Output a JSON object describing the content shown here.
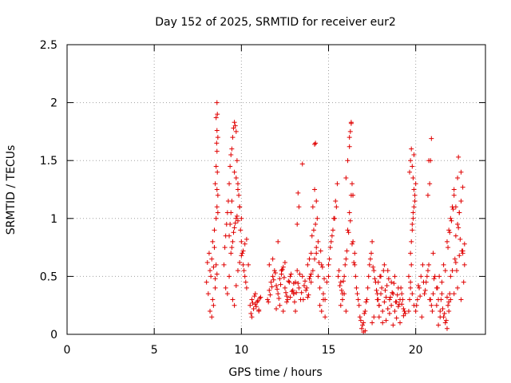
{
  "chart_data": {
    "type": "scatter",
    "title": "Day 152 of 2025, SRMTID for receiver eur2",
    "xlabel": "GPS time / hours",
    "ylabel": "SRMTID / TECUs",
    "xlim": [
      0,
      24
    ],
    "ylim": [
      0,
      2.5
    ],
    "x_ticks": [
      0,
      5,
      10,
      15,
      20
    ],
    "x_tick_labels": [
      "0",
      "5",
      "10",
      "15",
      "20"
    ],
    "y_ticks": [
      0,
      0.5,
      1,
      1.5,
      2,
      2.5
    ],
    "y_tick_labels": [
      "0",
      "0.5",
      "1",
      "1.5",
      "2",
      "2.5"
    ],
    "grid": true,
    "marker": "+",
    "series": [
      {
        "name": "SRMTID",
        "color": "#e00000",
        "x": [
          8.0,
          8.05,
          8.1,
          8.15,
          8.2,
          8.25,
          8.3,
          8.35,
          8.4,
          8.45,
          8.5,
          8.55,
          8.6,
          8.2,
          8.3,
          8.4,
          8.5,
          8.35,
          8.45,
          8.55,
          8.6,
          8.65,
          8.5,
          8.55,
          8.6,
          8.65,
          8.6,
          8.55,
          8.62,
          8.6,
          8.58,
          8.62,
          8.6,
          8.65,
          9.0,
          9.05,
          9.1,
          9.15,
          9.2,
          9.25,
          9.3,
          9.35,
          9.4,
          9.45,
          9.5,
          9.55,
          9.6,
          9.65,
          9.7,
          9.75,
          9.8,
          9.85,
          9.9,
          9.95,
          10.0,
          10.05,
          10.1,
          10.15,
          10.2,
          10.25,
          10.3,
          9.3,
          9.35,
          9.4,
          9.45,
          9.4,
          9.45,
          9.5,
          9.55,
          9.6,
          9.65,
          9.7,
          9.75,
          9.8,
          9.1,
          9.2,
          9.3,
          9.5,
          9.6,
          9.7,
          9.8,
          9.9,
          10.0,
          10.1,
          10.2,
          10.3,
          10.4,
          9.6,
          9.7,
          9.8,
          9.9,
          10.0,
          10.5,
          10.6,
          10.7,
          10.8,
          10.9,
          11.0,
          11.1,
          10.55,
          10.65,
          10.75,
          10.85,
          10.95,
          11.05,
          10.6,
          10.8,
          11.0,
          11.5,
          11.6,
          11.7,
          11.8,
          11.9,
          12.0,
          12.1,
          12.2,
          12.3,
          12.4,
          12.5,
          12.6,
          12.7,
          12.8,
          12.9,
          13.0,
          11.55,
          11.65,
          11.75,
          11.85,
          11.95,
          12.05,
          12.15,
          12.25,
          12.35,
          12.45,
          12.55,
          12.65,
          12.75,
          12.85,
          12.95,
          11.6,
          11.8,
          12.0,
          12.2,
          12.4,
          12.6,
          12.8,
          13.0,
          12.1,
          12.3,
          12.5,
          13.0,
          13.1,
          13.2,
          13.3,
          13.4,
          13.5,
          13.6,
          13.7,
          13.8,
          13.9,
          14.0,
          13.05,
          13.15,
          13.25,
          13.35,
          13.45,
          13.55,
          13.65,
          13.75,
          13.85,
          13.95,
          13.2,
          13.3,
          13.8,
          13.9,
          14.0,
          13.1,
          13.25,
          13.5,
          14.0,
          14.1,
          14.2,
          14.3,
          14.4,
          14.5,
          14.6,
          14.7,
          14.8,
          14.9,
          15.0,
          14.05,
          14.15,
          14.25,
          14.35,
          14.45,
          14.55,
          14.65,
          14.75,
          14.1,
          14.2,
          14.3,
          14.4,
          14.2,
          14.25,
          14.3,
          14.5,
          14.6,
          14.7,
          14.8,
          15.0,
          15.1,
          15.2,
          15.3,
          15.4,
          15.5,
          15.6,
          15.7,
          15.8,
          15.9,
          16.0,
          16.1,
          16.2,
          16.3,
          16.4,
          16.5,
          15.05,
          15.15,
          15.25,
          15.35,
          15.45,
          15.55,
          15.65,
          15.75,
          15.85,
          15.95,
          16.05,
          16.15,
          16.25,
          16.35,
          16.45,
          16.0,
          16.1,
          16.2,
          16.3,
          16.3,
          16.35,
          16.4,
          16.2,
          16.25,
          15.7,
          15.8,
          15.9,
          16.0,
          16.5,
          16.6,
          16.7,
          16.8,
          16.9,
          17.0,
          17.1,
          17.2,
          17.3,
          17.4,
          17.5,
          17.6,
          17.7,
          17.8,
          17.9,
          16.55,
          16.65,
          16.75,
          16.85,
          16.95,
          17.05,
          17.15,
          17.25,
          17.35,
          17.45,
          17.55,
          17.65,
          17.75,
          17.85,
          17.0,
          17.1,
          17.5,
          17.6,
          17.8,
          17.9,
          18.0,
          18.1,
          18.2,
          18.3,
          18.4,
          18.5,
          18.6,
          18.7,
          18.8,
          18.9,
          19.0,
          19.1,
          19.2,
          19.3,
          19.4,
          17.85,
          17.95,
          18.05,
          18.15,
          18.25,
          18.35,
          18.45,
          18.55,
          18.65,
          18.75,
          18.85,
          18.95,
          19.05,
          19.15,
          19.25,
          19.35,
          17.9,
          18.1,
          18.3,
          18.5,
          18.7,
          18.9,
          19.1,
          19.3,
          18.0,
          18.2,
          18.4,
          18.6,
          18.8,
          19.0,
          19.2,
          19.6,
          19.7,
          19.75,
          19.8,
          19.85,
          19.9,
          19.95,
          20.0,
          19.65,
          19.7,
          19.75,
          19.8,
          19.85,
          19.9,
          19.95,
          19.7,
          19.75,
          19.8,
          19.85,
          19.9,
          19.6,
          19.65,
          19.7,
          19.8,
          19.9,
          20.0,
          20.1,
          20.2,
          20.3,
          20.4,
          20.5,
          20.6,
          20.7,
          20.8,
          20.9,
          21.0,
          21.1,
          21.2,
          20.05,
          20.15,
          20.25,
          20.35,
          20.45,
          20.55,
          20.65,
          20.75,
          20.85,
          20.95,
          21.05,
          20.7,
          20.8,
          20.75,
          20.85,
          20.9,
          21.0,
          21.2,
          21.3,
          21.4,
          21.5,
          21.6,
          21.7,
          21.8,
          21.9,
          22.0,
          21.25,
          21.35,
          21.45,
          21.55,
          21.65,
          21.75,
          21.85,
          21.95,
          21.3,
          21.5,
          21.7,
          21.9,
          21.4,
          21.6,
          21.8,
          21.8,
          21.9,
          22.0,
          22.1,
          22.2,
          22.3,
          22.4,
          22.5,
          22.6,
          22.7,
          22.8,
          21.85,
          21.95,
          22.05,
          22.15,
          22.25,
          22.35,
          22.45,
          22.55,
          22.65,
          22.75,
          22.0,
          22.2,
          22.4,
          22.6,
          22.1,
          22.3,
          22.5,
          22.7,
          22.2,
          22.4,
          22.6,
          22.3,
          22.5,
          22.45,
          22.7,
          22.8
        ],
        "y": [
          0.45,
          0.62,
          0.35,
          0.7,
          0.55,
          0.5,
          0.65,
          0.3,
          0.58,
          0.75,
          0.48,
          0.6,
          0.52,
          0.2,
          0.15,
          0.25,
          0.4,
          0.8,
          0.9,
          1.0,
          1.1,
          1.2,
          1.3,
          1.45,
          1.58,
          1.7,
          1.76,
          1.87,
          1.9,
          2.0,
          1.65,
          1.4,
          1.25,
          1.05,
          0.6,
          0.75,
          0.85,
          0.95,
          1.05,
          1.15,
          1.3,
          1.45,
          1.55,
          1.6,
          1.7,
          1.78,
          1.83,
          1.8,
          1.75,
          1.5,
          1.3,
          1.2,
          1.1,
          0.9,
          0.8,
          0.7,
          0.6,
          0.55,
          0.5,
          0.45,
          0.4,
          0.85,
          0.95,
          1.05,
          1.15,
          0.7,
          0.75,
          0.8,
          0.88,
          0.92,
          0.96,
          1.0,
          1.02,
          0.98,
          0.4,
          0.35,
          0.5,
          0.3,
          0.25,
          0.42,
          0.55,
          0.62,
          0.68,
          0.72,
          0.78,
          0.82,
          0.6,
          1.4,
          1.35,
          1.25,
          1.1,
          1.0,
          0.25,
          0.3,
          0.22,
          0.35,
          0.28,
          0.2,
          0.32,
          0.18,
          0.27,
          0.33,
          0.24,
          0.29,
          0.31,
          0.15,
          0.26,
          0.21,
          0.3,
          0.38,
          0.45,
          0.5,
          0.55,
          0.42,
          0.35,
          0.48,
          0.52,
          0.58,
          0.4,
          0.33,
          0.46,
          0.5,
          0.37,
          0.44,
          0.28,
          0.34,
          0.41,
          0.47,
          0.53,
          0.39,
          0.31,
          0.43,
          0.56,
          0.49,
          0.36,
          0.3,
          0.45,
          0.52,
          0.38,
          0.6,
          0.65,
          0.22,
          0.25,
          0.2,
          0.28,
          0.32,
          0.35,
          0.8,
          0.55,
          0.62,
          0.35,
          0.45,
          0.55,
          0.4,
          0.3,
          0.5,
          0.42,
          0.38,
          0.32,
          0.48,
          0.52,
          0.28,
          0.36,
          0.44,
          0.52,
          0.36,
          0.3,
          0.46,
          0.4,
          0.34,
          0.5,
          0.95,
          1.1,
          0.6,
          0.65,
          0.7,
          0.2,
          1.22,
          1.47,
          0.45,
          0.55,
          0.65,
          0.75,
          0.5,
          0.4,
          0.6,
          0.35,
          0.3,
          0.45,
          0.5,
          0.85,
          0.9,
          0.95,
          1.0,
          0.62,
          0.72,
          0.58,
          0.48,
          1.1,
          1.25,
          1.15,
          0.8,
          1.64,
          1.65,
          0.7,
          0.25,
          0.2,
          0.3,
          0.15,
          0.6,
          0.75,
          0.85,
          1.0,
          1.15,
          1.3,
          0.55,
          0.45,
          0.35,
          0.5,
          0.65,
          0.9,
          1.05,
          1.2,
          0.8,
          0.7,
          0.65,
          0.8,
          0.9,
          1.0,
          1.1,
          0.5,
          0.42,
          0.38,
          0.46,
          0.6,
          0.72,
          0.88,
          0.98,
          0.78,
          0.62,
          1.35,
          1.5,
          1.62,
          1.82,
          1.83,
          1.3,
          1.2,
          1.7,
          1.75,
          0.25,
          0.3,
          0.35,
          0.2,
          0.6,
          0.4,
          0.3,
          0.15,
          0.05,
          0.1,
          0.2,
          0.3,
          0.5,
          0.65,
          0.8,
          0.55,
          0.45,
          0.35,
          0.25,
          0.5,
          0.35,
          0.25,
          0.12,
          0.08,
          0.18,
          0.28,
          0.4,
          0.6,
          0.7,
          0.58,
          0.48,
          0.38,
          0.3,
          0.02,
          0.03,
          0.1,
          0.15,
          0.3,
          0.25,
          0.35,
          0.2,
          0.28,
          0.32,
          0.22,
          0.3,
          0.25,
          0.35,
          0.2,
          0.28,
          0.24,
          0.3,
          0.26,
          0.22,
          0.18,
          0.45,
          0.5,
          0.4,
          0.55,
          0.38,
          0.42,
          0.48,
          0.32,
          0.36,
          0.44,
          0.28,
          0.34,
          0.26,
          0.4,
          0.3,
          0.2,
          0.15,
          0.1,
          0.12,
          0.18,
          0.08,
          0.14,
          0.1,
          0.16,
          0.5,
          0.6,
          0.55,
          0.45,
          0.5,
          0.4,
          0.35,
          0.5,
          0.45,
          0.8,
          0.9,
          1.0,
          1.1,
          1.2,
          1.3,
          1.4,
          1.5,
          1.6,
          1.45,
          1.35,
          1.25,
          1.15,
          0.7,
          0.6,
          0.95,
          1.05,
          1.55,
          0.2,
          0.3,
          0.4,
          0.35,
          0.25,
          0.2,
          0.3,
          0.4,
          0.5,
          0.6,
          0.35,
          0.45,
          0.55,
          0.3,
          0.25,
          0.35,
          0.5,
          0.4,
          0.25,
          0.42,
          0.33,
          0.15,
          0.45,
          0.38,
          0.5,
          0.6,
          0.3,
          0.2,
          0.48,
          1.2,
          1.3,
          1.5,
          1.5,
          1.69,
          0.7,
          0.25,
          0.3,
          0.2,
          0.35,
          0.15,
          0.1,
          0.05,
          0.2,
          0.3,
          0.4,
          0.5,
          0.3,
          0.22,
          0.18,
          0.12,
          0.25,
          0.35,
          0.08,
          0.45,
          0.55,
          0.28,
          0.15,
          0.6,
          0.32,
          0.8,
          0.9,
          1.0,
          1.1,
          1.2,
          0.85,
          0.95,
          1.05,
          1.15,
          0.7,
          0.6,
          0.75,
          0.88,
          0.98,
          1.08,
          0.65,
          0.55,
          0.92,
          0.82,
          0.72,
          0.45,
          0.5,
          0.35,
          0.4,
          0.3,
          0.55,
          0.62,
          0.68,
          0.72,
          1.25,
          1.35,
          1.4,
          1.1,
          1.05,
          1.53,
          1.27,
          0.78
        ]
      }
    ]
  }
}
